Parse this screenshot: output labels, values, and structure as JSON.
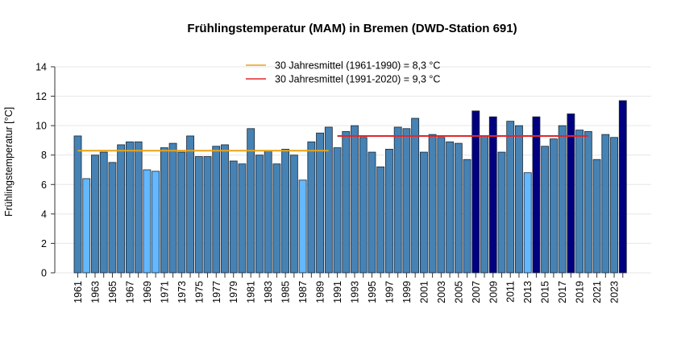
{
  "chart_data": {
    "type": "bar",
    "title": "Frühlingstemperatur (MAM) in Bremen (DWD-Station 691)",
    "xlabel": "",
    "ylabel": "Frühlingstemperatur [°C]",
    "ylim": [
      0,
      14
    ],
    "yticks": [
      0,
      2,
      4,
      6,
      8,
      10,
      12,
      14
    ],
    "grid": true,
    "legend_position": "top-center",
    "categories": [
      1961,
      1962,
      1963,
      1964,
      1965,
      1966,
      1967,
      1968,
      1969,
      1970,
      1971,
      1972,
      1973,
      1974,
      1975,
      1976,
      1977,
      1978,
      1979,
      1980,
      1981,
      1982,
      1983,
      1984,
      1985,
      1986,
      1987,
      1988,
      1989,
      1990,
      1991,
      1992,
      1993,
      1994,
      1995,
      1996,
      1997,
      1998,
      1999,
      2000,
      2001,
      2002,
      2003,
      2004,
      2005,
      2006,
      2007,
      2008,
      2009,
      2010,
      2011,
      2012,
      2013,
      2014,
      2015,
      2016,
      2017,
      2018,
      2019,
      2020,
      2021,
      2022,
      2023,
      2024
    ],
    "xtick_labels": [
      "1961",
      "1963",
      "1965",
      "1967",
      "1969",
      "1971",
      "1973",
      "1975",
      "1977",
      "1979",
      "1981",
      "1983",
      "1985",
      "1987",
      "1989",
      "1991",
      "1993",
      "1995",
      "1997",
      "1999",
      "2001",
      "2003",
      "2005",
      "2007",
      "2009",
      "2011",
      "2013",
      "2015",
      "2017",
      "2019",
      "2021",
      "2023"
    ],
    "values": [
      9.3,
      6.4,
      8.0,
      8.2,
      7.5,
      8.7,
      8.9,
      8.9,
      7.0,
      6.9,
      8.5,
      8.8,
      8.2,
      9.3,
      7.9,
      7.9,
      8.6,
      8.7,
      7.6,
      7.4,
      9.8,
      8.0,
      8.3,
      7.4,
      8.4,
      8.0,
      6.3,
      8.9,
      9.5,
      9.9,
      8.5,
      9.6,
      10.0,
      9.2,
      8.2,
      7.2,
      8.4,
      9.9,
      9.8,
      10.5,
      8.2,
      9.4,
      9.2,
      8.9,
      8.8,
      7.7,
      11.0,
      9.3,
      10.6,
      8.2,
      10.3,
      10.0,
      6.8,
      10.6,
      8.6,
      9.1,
      10.0,
      10.8,
      9.7,
      9.6,
      7.7,
      9.4,
      9.2,
      11.7
    ],
    "bar_class": [
      "n",
      "c",
      "n",
      "n",
      "n",
      "n",
      "n",
      "n",
      "c",
      "c",
      "n",
      "n",
      "n",
      "n",
      "n",
      "n",
      "n",
      "n",
      "n",
      "n",
      "n",
      "n",
      "n",
      "n",
      "n",
      "n",
      "c",
      "n",
      "n",
      "n",
      "n",
      "n",
      "n",
      "n",
      "n",
      "n",
      "n",
      "n",
      "n",
      "n",
      "n",
      "n",
      "n",
      "n",
      "n",
      "n",
      "w",
      "n",
      "w",
      "n",
      "n",
      "n",
      "c",
      "w",
      "n",
      "n",
      "n",
      "w",
      "n",
      "n",
      "n",
      "n",
      "n",
      "w"
    ],
    "bar_colors": {
      "n": "#4682B4",
      "c": "#63B8FF",
      "w": "#000080"
    },
    "reference_lines": [
      {
        "name": "30 Jahresmittel (1961-1990) = 8,3 °C",
        "value": 8.3,
        "from": 1961,
        "to": 1990,
        "color": "#E8A317"
      },
      {
        "name": "30 Jahresmittel (1991-2020) = 9,3 °C",
        "value": 9.3,
        "from": 1991,
        "to": 2020,
        "color": "#E3262B"
      }
    ]
  }
}
